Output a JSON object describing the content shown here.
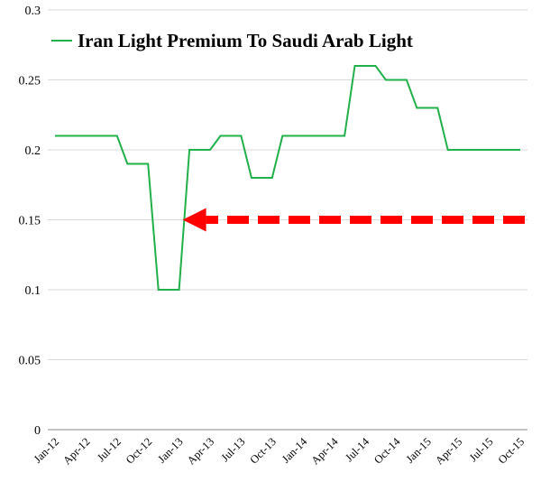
{
  "chart_data": {
    "type": "line",
    "title": "",
    "xlabel": "",
    "ylabel": "",
    "ylim": [
      0,
      0.3
    ],
    "y_ticks": [
      "0",
      "0.05",
      "0.1",
      "0.15",
      "0.2",
      "0.25",
      "0.3"
    ],
    "y_tick_values": [
      0,
      0.05,
      0.1,
      0.15,
      0.2,
      0.25,
      0.3
    ],
    "x_tick_labels": [
      "Jan-12",
      "Apr-12",
      "Jul-12",
      "Oct-12",
      "Jan-13",
      "Apr-13",
      "Jul-13",
      "Oct-13",
      "Jan-14",
      "Apr-14",
      "Jul-14",
      "Oct-14",
      "Jan-15",
      "Apr-15",
      "Jul-15",
      "Oct-15"
    ],
    "grid": true,
    "legend_position": "top",
    "series": [
      {
        "name": "Iran Light Premium To Saudi Arab Light",
        "color": "#22b04a",
        "x": [
          "Jan-12",
          "Feb-12",
          "Mar-12",
          "Apr-12",
          "May-12",
          "Jun-12",
          "Jul-12",
          "Aug-12",
          "Sep-12",
          "Oct-12",
          "Nov-12",
          "Dec-12",
          "Jan-13",
          "Feb-13",
          "Mar-13",
          "Apr-13",
          "May-13",
          "Jun-13",
          "Jul-13",
          "Aug-13",
          "Sep-13",
          "Oct-13",
          "Nov-13",
          "Dec-13",
          "Jan-14",
          "Feb-14",
          "Mar-14",
          "Apr-14",
          "May-14",
          "Jun-14",
          "Jul-14",
          "Aug-14",
          "Sep-14",
          "Oct-14",
          "Nov-14",
          "Dec-14",
          "Jan-15",
          "Feb-15",
          "Mar-15",
          "Apr-15",
          "May-15",
          "Jun-15",
          "Jul-15",
          "Aug-15",
          "Sep-15",
          "Oct-15"
        ],
        "values": [
          0.21,
          0.21,
          0.21,
          0.21,
          0.21,
          0.21,
          0.21,
          0.19,
          0.19,
          0.19,
          0.1,
          0.1,
          0.1,
          0.2,
          0.2,
          0.2,
          0.21,
          0.21,
          0.21,
          0.18,
          0.18,
          0.18,
          0.21,
          0.21,
          0.21,
          0.21,
          0.21,
          0.21,
          0.21,
          0.26,
          0.26,
          0.26,
          0.25,
          0.25,
          0.25,
          0.23,
          0.23,
          0.23,
          0.2,
          0.2,
          0.2,
          0.2,
          0.2,
          0.2,
          0.2,
          0.2
        ]
      }
    ],
    "annotations": [
      {
        "type": "arrow",
        "style": "dashed",
        "color": "#ff0000",
        "from": {
          "x": "Oct-15",
          "y": 0.15
        },
        "to": {
          "x": "Jan-13",
          "y": 0.15
        }
      }
    ]
  }
}
